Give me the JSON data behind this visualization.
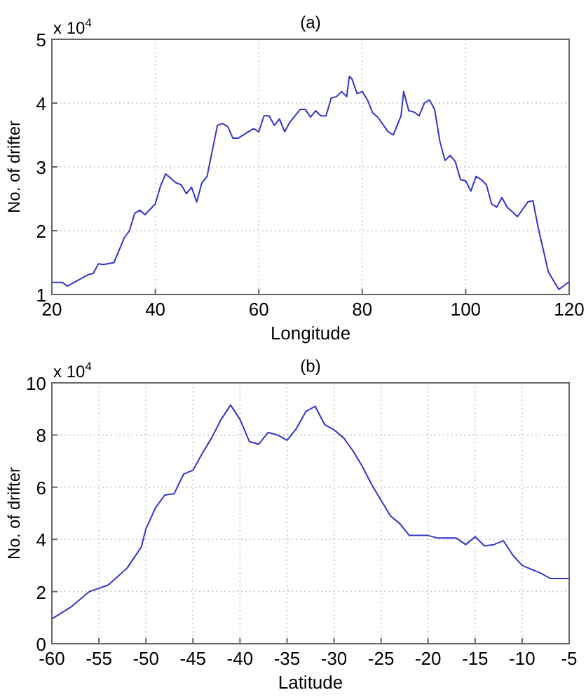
{
  "chart_data": [
    {
      "type": "line",
      "title": "(a)",
      "xlabel": "Longitude",
      "ylabel": "No. of drifter",
      "annotations": [
        "x 10$^{4}$"
      ],
      "xlim": [
        20,
        120
      ],
      "xticks": [
        20,
        40,
        60,
        80,
        100,
        120
      ],
      "ylim": [
        1,
        5
      ],
      "yticks": [
        1,
        2,
        3,
        4,
        5
      ],
      "grid": true,
      "marker": "none",
      "line_style": "solid",
      "series": [
        {
          "color": "#3333cc",
          "x": [
            20,
            22,
            23,
            25,
            27,
            28,
            29,
            30,
            32,
            34,
            35,
            36,
            37,
            38,
            40,
            41,
            42,
            44,
            45,
            46,
            47,
            48,
            49,
            50,
            52,
            53,
            54,
            55,
            56,
            58,
            59,
            60,
            61,
            62,
            63,
            64,
            65,
            66,
            68,
            69,
            70,
            71,
            72,
            73,
            74,
            75,
            76,
            77,
            77.5,
            78,
            79,
            80,
            81,
            82,
            83,
            85,
            86,
            87.5,
            88,
            89,
            90,
            91,
            92,
            93,
            94,
            95,
            96,
            97,
            98,
            99,
            100,
            101,
            102,
            103,
            104,
            105,
            106,
            107,
            108,
            110,
            112,
            113,
            114,
            116,
            118,
            120
          ],
          "values": [
            1.19,
            1.19,
            1.13,
            1.22,
            1.31,
            1.33,
            1.48,
            1.47,
            1.5,
            1.89,
            2.0,
            2.27,
            2.32,
            2.25,
            2.42,
            2.7,
            2.89,
            2.75,
            2.72,
            2.58,
            2.68,
            2.45,
            2.75,
            2.85,
            3.65,
            3.68,
            3.63,
            3.45,
            3.45,
            3.55,
            3.6,
            3.55,
            3.8,
            3.8,
            3.65,
            3.75,
            3.55,
            3.7,
            3.9,
            3.9,
            3.78,
            3.88,
            3.8,
            3.8,
            4.08,
            4.1,
            4.18,
            4.1,
            4.42,
            4.38,
            4.15,
            4.18,
            4.05,
            3.85,
            3.78,
            3.55,
            3.5,
            3.8,
            4.18,
            3.88,
            3.86,
            3.8,
            4.0,
            4.05,
            3.9,
            3.4,
            3.1,
            3.18,
            3.08,
            2.8,
            2.78,
            2.62,
            2.85,
            2.8,
            2.72,
            2.42,
            2.37,
            2.52,
            2.37,
            2.22,
            2.45,
            2.47,
            2.05,
            1.35,
            1.08,
            1.2
          ]
        }
      ]
    },
    {
      "type": "line",
      "title": "(b)",
      "xlabel": "Latitude",
      "ylabel": "No. of drifter",
      "annotations": [
        "x 10$^{4}$"
      ],
      "xlim": [
        -60,
        -5
      ],
      "xticks": [
        -60,
        -55,
        -50,
        -45,
        -40,
        -35,
        -30,
        -25,
        -20,
        -15,
        -10,
        -5
      ],
      "ylim": [
        0,
        10
      ],
      "yticks": [
        0,
        2,
        4,
        6,
        8,
        10
      ],
      "grid": true,
      "marker": "none",
      "line_style": "solid",
      "series": [
        {
          "color": "#3333cc",
          "x": [
            -60,
            -58,
            -56,
            -54,
            -52,
            -50.5,
            -50,
            -49,
            -48,
            -47,
            -46,
            -45,
            -44,
            -43,
            -42,
            -41,
            -40,
            -39,
            -38,
            -37,
            -36,
            -35,
            -34,
            -33,
            -32,
            -31,
            -30,
            -29,
            -28,
            -27,
            -26,
            -25,
            -24,
            -23,
            -22,
            -20,
            -19,
            -17,
            -16,
            -15,
            -14,
            -13,
            -12,
            -11,
            -10,
            -8,
            -7,
            -5
          ],
          "values": [
            0.95,
            1.4,
            2.0,
            2.25,
            2.9,
            3.7,
            4.4,
            5.2,
            5.7,
            5.75,
            6.5,
            6.65,
            7.3,
            7.9,
            8.6,
            9.15,
            8.6,
            7.75,
            7.65,
            8.1,
            8.0,
            7.8,
            8.25,
            8.9,
            9.1,
            8.4,
            8.2,
            7.9,
            7.4,
            6.8,
            6.1,
            5.5,
            4.9,
            4.6,
            4.15,
            4.15,
            4.05,
            4.05,
            3.8,
            4.1,
            3.75,
            3.8,
            3.95,
            3.4,
            3.0,
            2.7,
            2.5,
            2.5
          ]
        }
      ]
    }
  ]
}
